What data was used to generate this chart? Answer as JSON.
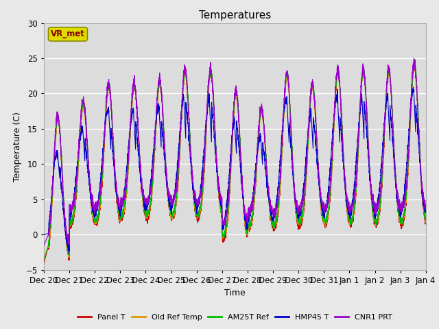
{
  "title": "Temperatures",
  "xlabel": "Time",
  "ylabel": "Temperature (C)",
  "ylim": [
    -5,
    30
  ],
  "n_days": 15,
  "xtick_labels": [
    "Dec 20",
    "Dec 21",
    "Dec 22",
    "Dec 23",
    "Dec 24",
    "Dec 25",
    "Dec 26",
    "Dec 27",
    "Dec 28",
    "Dec 29",
    "Dec 30",
    "Dec 31",
    "Jan 1",
    "Jan 2",
    "Jan 3",
    "Jan 4"
  ],
  "series_colors": {
    "Panel T": "#cc0000",
    "Old Ref Temp": "#dd9900",
    "AM25T Ref": "#00bb00",
    "HMP45 T": "#0000cc",
    "CNR1 PRT": "#9900cc"
  },
  "legend_label": "VR_met",
  "fig_bg": "#e8e8e8",
  "plot_bg": "#dcdcdc",
  "grid_color": "#ffffff",
  "annot_box_bg": "#dddd00",
  "annot_text_color": "#880000",
  "annot_edge_color": "#888800",
  "daily_lows": [
    -4.0,
    1.0,
    1.2,
    2.0,
    2.0,
    2.0,
    2.0,
    -1.0,
    0.5,
    0.5,
    1.0,
    1.0,
    1.0,
    1.0,
    1.0
  ],
  "daily_highs": [
    16.5,
    18.5,
    21.0,
    21.0,
    21.5,
    23.0,
    23.0,
    20.0,
    17.5,
    22.5,
    21.0,
    23.0,
    23.0,
    23.0,
    24.0
  ],
  "pts_per_day": 288
}
